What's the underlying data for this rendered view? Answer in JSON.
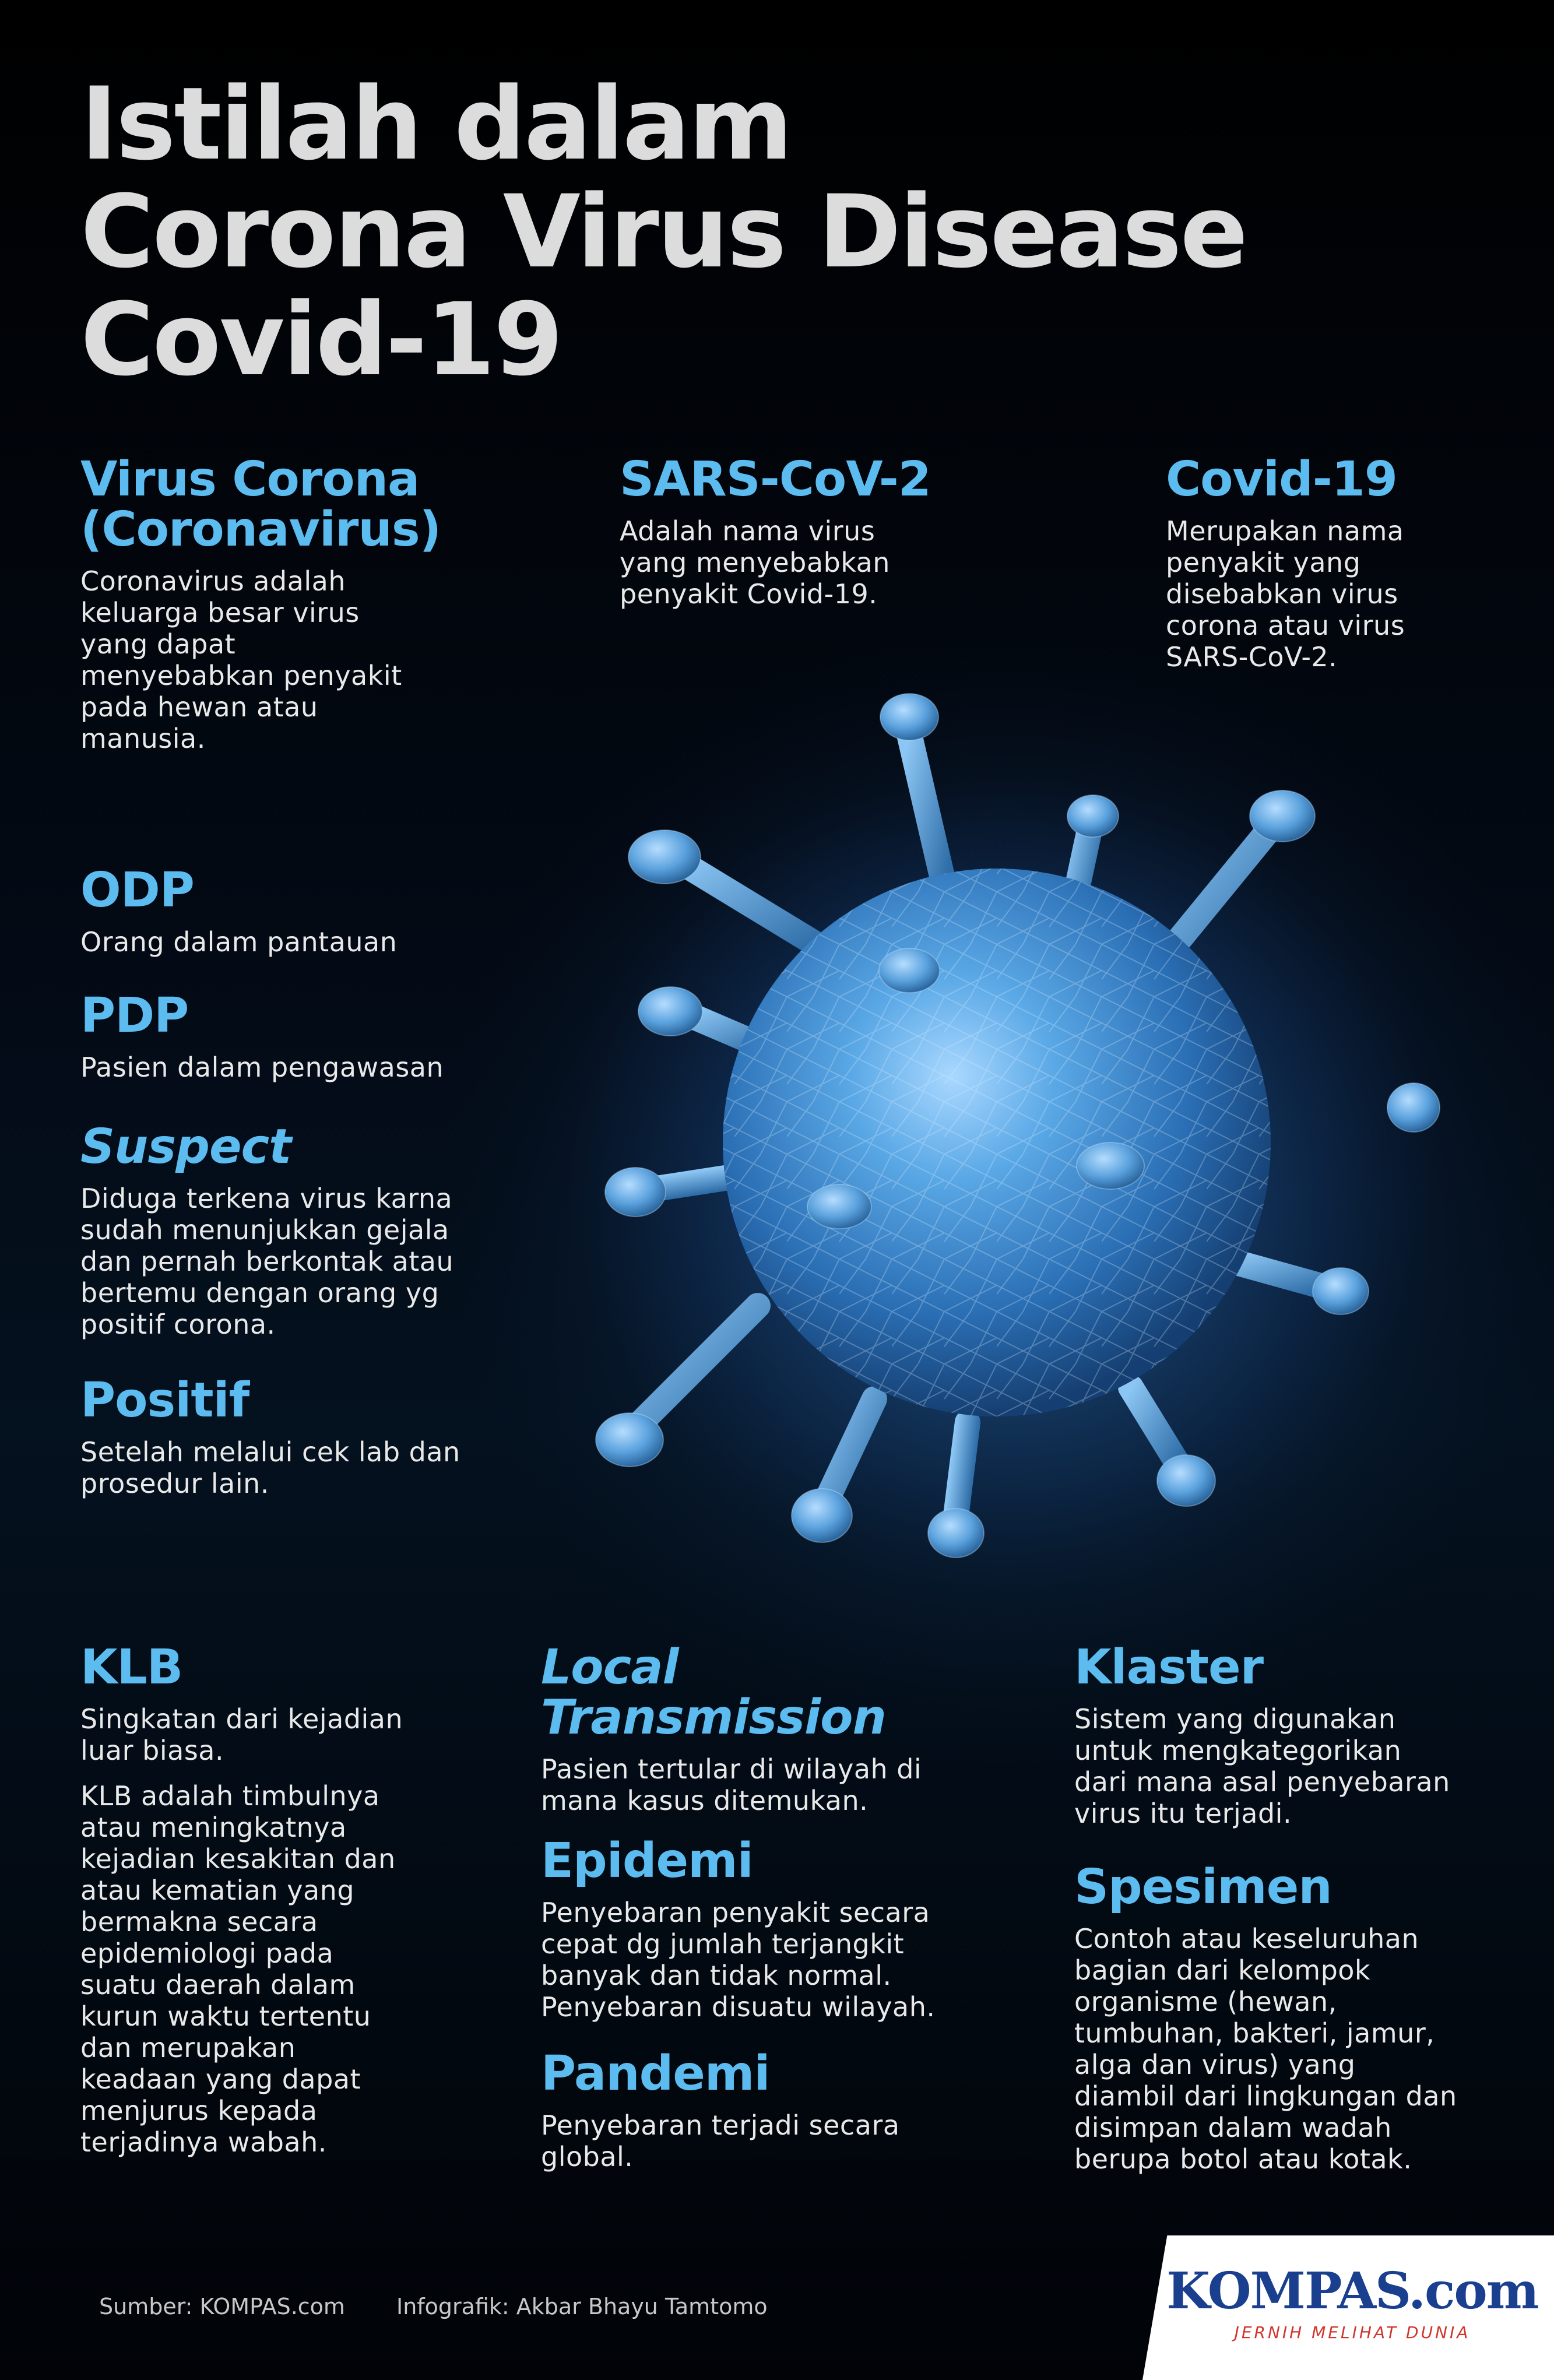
{
  "title": {
    "line1": "Istilah dalam",
    "line2": "Corona Virus Disease",
    "line3": "Covid-19"
  },
  "terms": {
    "virus_corona": {
      "title1": "Virus Corona",
      "title2": "(Coronavirus)",
      "desc": [
        "Coronavirus adalah",
        "keluarga besar virus",
        "yang dapat",
        "menyebabkan penyakit",
        "pada hewan atau",
        "manusia."
      ]
    },
    "sars": {
      "title": "SARS-CoV-2",
      "desc": [
        "Adalah nama virus",
        "yang menyebabkan",
        "penyakit Covid-19."
      ]
    },
    "covid": {
      "title": "Covid-19",
      "desc": [
        "Merupakan nama",
        "penyakit yang",
        "disebabkan virus",
        "corona atau virus",
        "SARS-CoV-2."
      ]
    },
    "odp": {
      "title": "ODP",
      "desc": [
        "Orang dalam pantauan"
      ]
    },
    "pdp": {
      "title": "PDP",
      "desc": [
        "Pasien dalam pengawasan"
      ]
    },
    "suspect": {
      "title": "Suspect",
      "desc": [
        "Diduga terkena virus karna",
        "sudah menunjukkan  gejala",
        "dan pernah berkontak atau",
        "bertemu dengan orang yg",
        "positif corona."
      ]
    },
    "positif": {
      "title": "Positif",
      "desc": [
        "Setelah melalui cek lab dan",
        "prosedur lain."
      ]
    },
    "klb": {
      "title": "KLB",
      "desc1": [
        "Singkatan dari kejadian",
        "luar biasa."
      ],
      "desc2": [
        "KLB adalah timbulnya",
        "atau meningkatnya",
        "kejadian kesakitan dan",
        "atau kematian yang",
        "bermakna secara",
        "epidemiologi pada",
        "suatu daerah dalam",
        "kurun waktu tertentu",
        "dan merupakan",
        "keadaan yang dapat",
        "menjurus kepada",
        "terjadinya wabah."
      ]
    },
    "local": {
      "title1": "Local",
      "title2": "Transmission",
      "desc": [
        "Pasien tertular di wilayah di",
        "mana kasus ditemukan."
      ]
    },
    "epidemi": {
      "title": "Epidemi",
      "desc": [
        "Penyebaran penyakit secara",
        "cepat dg jumlah terjangkit",
        "banyak dan tidak normal.",
        "Penyebaran disuatu wilayah."
      ]
    },
    "pandemi": {
      "title": "Pandemi",
      "desc": [
        "Penyebaran terjadi secara",
        "global."
      ]
    },
    "klaster": {
      "title": "Klaster",
      "desc": [
        "Sistem yang digunakan",
        "untuk mengkategorikan",
        "dari mana asal penyebaran",
        "virus itu terjadi."
      ]
    },
    "spesimen": {
      "title": "Spesimen",
      "desc": [
        "Contoh atau keseluruhan",
        "bagian dari kelompok",
        "organisme (hewan,",
        "tumbuhan, bakteri, jamur,",
        "alga dan virus) yang",
        "diambil dari lingkungan dan",
        "disimpan dalam wadah",
        "berupa botol atau kotak."
      ]
    }
  },
  "footer": {
    "source": "Sumber:  KOMPAS.com",
    "credit": "Infografik: Akbar Bhayu Tamtomo"
  },
  "logo": {
    "name": "KOMPAS",
    "suffix": ".com",
    "tagline": "JERNIH MELIHAT DUNIA"
  },
  "colors": {
    "background": "#02060d",
    "heading": "#5cbcf0",
    "title": "#dcdcdc",
    "body_text": "#e9e9e9",
    "virus": "#5aa8e6",
    "logo_blue": "#1a3f8f",
    "logo_red": "#d0342c"
  },
  "illustration": "coronavirus-3d-polygon"
}
